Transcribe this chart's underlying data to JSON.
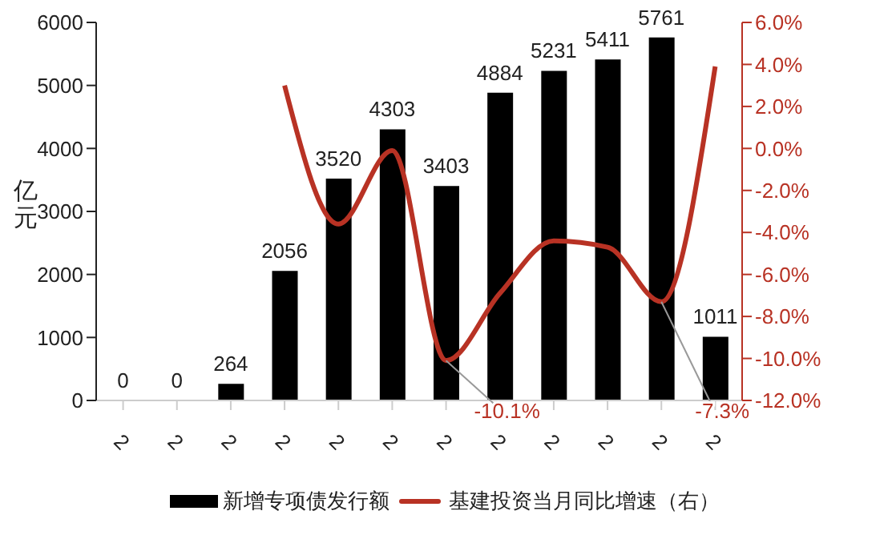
{
  "chart_data": {
    "type": "bar",
    "ylabel": "亿元",
    "categories": [
      "2",
      "2",
      "2",
      "2",
      "2",
      "2",
      "2",
      "2",
      "2",
      "2",
      "2",
      "2"
    ],
    "series": [
      {
        "name": "新增专项债发行额",
        "color": "#000000",
        "values": [
          0,
          0,
          264,
          2056,
          3520,
          4303,
          3403,
          4884,
          5231,
          5411,
          5761,
          1011
        ]
      },
      {
        "name": "基建投资当月同比增速（右）",
        "type": "line",
        "axis": "y2",
        "color": "#b83224",
        "values": [
          null,
          null,
          null,
          3.0,
          -3.6,
          -0.1,
          -10.1,
          -6.9,
          -4.4,
          -4.7,
          -7.3,
          3.9
        ],
        "value_labels": [
          null,
          null,
          null,
          null,
          null,
          null,
          "-10.1%",
          null,
          null,
          null,
          "-7.3%",
          null
        ]
      }
    ],
    "data_labels": true,
    "ylim": [
      0,
      6000
    ],
    "yticks": [
      0,
      1000,
      2000,
      3000,
      4000,
      5000,
      6000
    ],
    "y2lim": [
      -12,
      6
    ],
    "y2ticks": [
      {
        "value": -12,
        "label": "-12.0%"
      },
      {
        "value": -10,
        "label": "-10.0%"
      },
      {
        "value": -8,
        "label": "-8.0%"
      },
      {
        "value": -6,
        "label": "-6.0%"
      },
      {
        "value": -4,
        "label": "-4.0%"
      },
      {
        "value": -2,
        "label": "-2.0%"
      },
      {
        "value": 0,
        "label": "0.0%"
      },
      {
        "value": 2,
        "label": "2.0%"
      },
      {
        "value": 4,
        "label": "4.0%"
      },
      {
        "value": 6,
        "label": "6.0%"
      }
    ],
    "grid": false,
    "legend": "bottom",
    "marker": "none",
    "line_style": "solid"
  }
}
